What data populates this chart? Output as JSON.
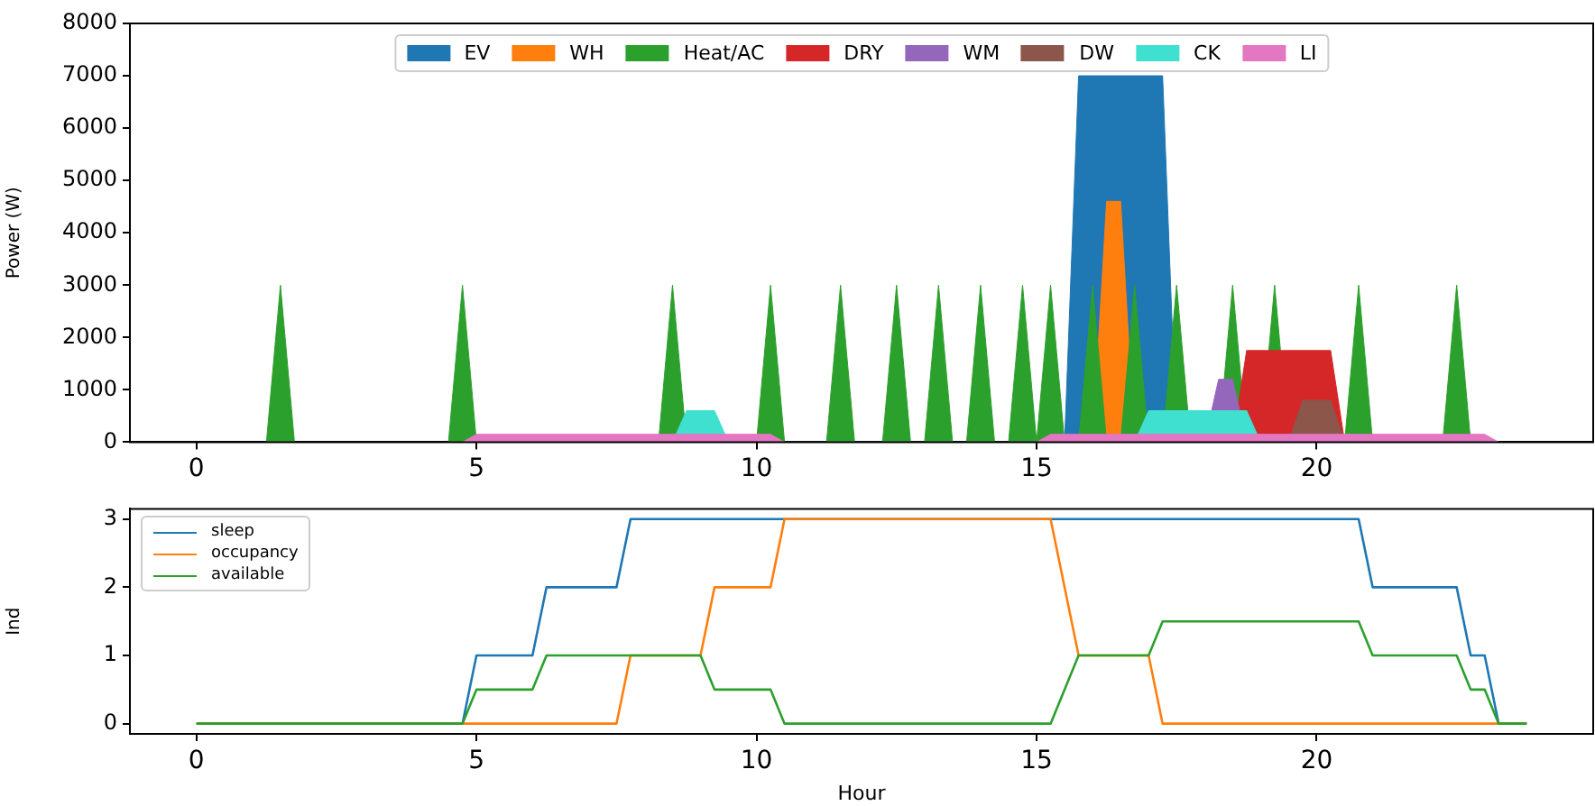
{
  "chart_data": [
    {
      "type": "area",
      "ylabel": "Power (W)",
      "xlim": [
        -1.1875,
        24.9375
      ],
      "xticks": [
        0,
        5,
        10,
        15,
        20
      ],
      "ylim": [
        0,
        8000
      ],
      "yticks": [
        0,
        1000,
        2000,
        3000,
        4000,
        5000,
        6000,
        7000,
        8000
      ],
      "grid": false,
      "legend": "top",
      "series": [
        {
          "name": "EV",
          "color": "#1f77b4",
          "x": [
            15.5,
            15.75,
            17.25,
            17.5
          ],
          "values": [
            0,
            7000,
            7000,
            0
          ]
        },
        {
          "name": "WH",
          "color": "#ff7f0e",
          "x": [
            16.0,
            16.25,
            16.5,
            16.75
          ],
          "values": [
            0,
            4600,
            4600,
            0
          ]
        },
        {
          "name": "Heat/AC",
          "color": "#2ca02c",
          "x": [
            1.25,
            1.5,
            1.75,
            4.5,
            4.75,
            5.0,
            8.25,
            8.5,
            8.75,
            10.0,
            10.25,
            10.5,
            11.25,
            11.5,
            11.75,
            12.25,
            12.5,
            12.75,
            13.0,
            13.25,
            13.5,
            13.75,
            14.0,
            14.25,
            14.5,
            14.75,
            15.0,
            15.25,
            15.5,
            15.75,
            16.0,
            16.25,
            16.5,
            16.75,
            17.0,
            17.25,
            17.5,
            17.75,
            18.25,
            18.5,
            18.75,
            19.0,
            19.25,
            19.5,
            20.5,
            20.75,
            21.0,
            22.25,
            22.5,
            22.75
          ],
          "values": [
            0,
            3000,
            0,
            0,
            3000,
            0,
            0,
            3000,
            0,
            0,
            3000,
            0,
            0,
            3000,
            0,
            0,
            3000,
            0,
            0,
            3000,
            0,
            0,
            3000,
            0,
            0,
            3000,
            0,
            3000,
            0,
            0,
            3000,
            0,
            0,
            3000,
            0,
            0,
            3000,
            0,
            0,
            3000,
            0,
            0,
            3000,
            0,
            0,
            3000,
            0,
            0,
            3000,
            0
          ]
        },
        {
          "name": "DRY",
          "color": "#d62728",
          "x": [
            18.5,
            18.75,
            20.25,
            20.5
          ],
          "values": [
            0,
            1750,
            1750,
            0
          ]
        },
        {
          "name": "WM",
          "color": "#9467bd",
          "x": [
            18.0,
            18.25,
            18.5,
            18.75
          ],
          "values": [
            0,
            1200,
            1200,
            0
          ]
        },
        {
          "name": "DW",
          "color": "#8c564b",
          "x": [
            19.5,
            19.75,
            20.25,
            20.5
          ],
          "values": [
            0,
            800,
            800,
            0
          ]
        },
        {
          "name": "CK",
          "color": "#40e0d0",
          "x": [
            8.5,
            8.75,
            9.25,
            9.5,
            16.75,
            17.0,
            18.75,
            19.0
          ],
          "values": [
            0,
            600,
            600,
            0,
            0,
            600,
            600,
            0
          ]
        },
        {
          "name": "LI",
          "color": "#e377c2",
          "x": [
            4.75,
            5.0,
            10.25,
            10.5,
            15.0,
            15.25,
            23.0,
            23.25
          ],
          "values": [
            0,
            150,
            150,
            0,
            0,
            150,
            150,
            0
          ]
        }
      ]
    },
    {
      "type": "line",
      "xlabel": "Hour",
      "ylabel": "Ind",
      "xlim": [
        -1.1875,
        24.9375
      ],
      "xticks": [
        0,
        5,
        10,
        15,
        20
      ],
      "ylim": [
        -0.15,
        3.15
      ],
      "yticks": [
        0,
        1,
        2,
        3
      ],
      "grid": false,
      "legend": "top left",
      "series": [
        {
          "name": "sleep",
          "color": "#1f77b4",
          "x": [
            0,
            4.75,
            5.0,
            6.0,
            6.25,
            7.5,
            7.75,
            20.75,
            21.0,
            22.5,
            22.75,
            23.0,
            23.25,
            23.75
          ],
          "values": [
            0,
            0,
            1,
            1,
            2,
            2,
            3,
            3,
            2,
            2,
            1,
            1,
            0,
            0
          ]
        },
        {
          "name": "occupancy",
          "color": "#ff7f0e",
          "x": [
            0,
            7.5,
            7.75,
            9.0,
            9.25,
            10.25,
            10.5,
            15.25,
            15.75,
            17.0,
            17.25,
            23.75
          ],
          "values": [
            0,
            0,
            1,
            1,
            2,
            2,
            3,
            3,
            1,
            1,
            0,
            0
          ]
        },
        {
          "name": "available",
          "color": "#2ca02c",
          "x": [
            0,
            4.75,
            5.0,
            6.0,
            6.25,
            9.0,
            9.25,
            10.25,
            10.5,
            15.25,
            15.75,
            17.0,
            17.25,
            20.75,
            21.0,
            22.5,
            22.75,
            23.0,
            23.25,
            23.75
          ],
          "values": [
            0,
            0,
            0.5,
            0.5,
            1,
            1,
            0.5,
            0.5,
            0,
            0,
            1,
            1,
            1.5,
            1.5,
            1,
            1,
            0.5,
            0.5,
            0,
            0
          ]
        }
      ]
    }
  ]
}
